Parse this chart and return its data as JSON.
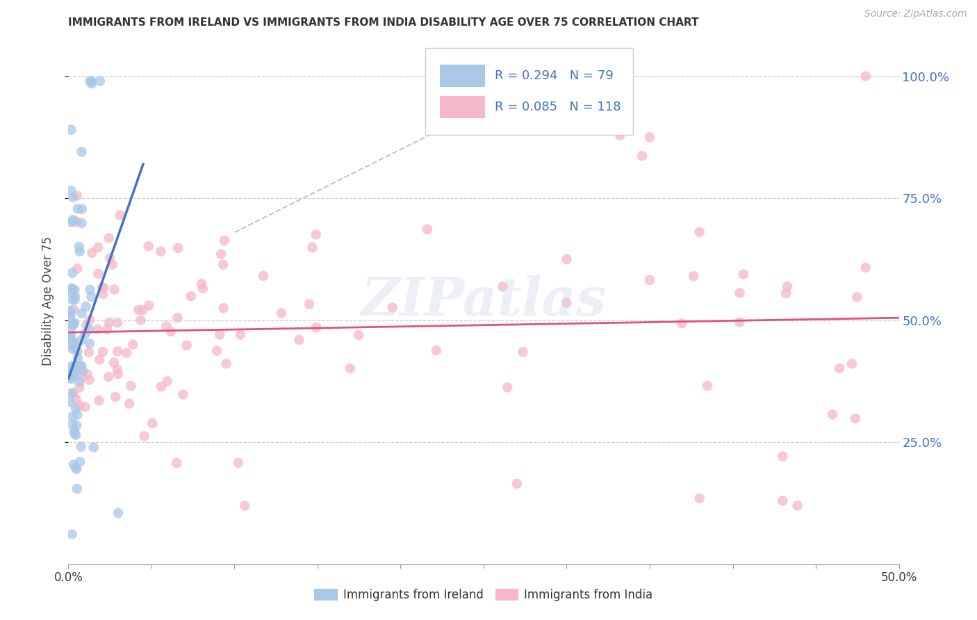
{
  "title": "IMMIGRANTS FROM IRELAND VS IMMIGRANTS FROM INDIA DISABILITY AGE OVER 75 CORRELATION CHART",
  "source": "Source: ZipAtlas.com",
  "ylabel": "Disability Age Over 75",
  "xlabel_ireland": "Immigrants from Ireland",
  "xlabel_india": "Immigrants from India",
  "r_ireland": 0.294,
  "n_ireland": 79,
  "r_india": 0.085,
  "n_india": 118,
  "xlim": [
    0.0,
    0.5
  ],
  "ylim": [
    0.0,
    1.08
  ],
  "yticks": [
    0.25,
    0.5,
    0.75,
    1.0
  ],
  "ytick_labels": [
    "25.0%",
    "50.0%",
    "75.0%",
    "100.0%"
  ],
  "xtick_positions": [
    0.0,
    0.05,
    0.1,
    0.15,
    0.2,
    0.25,
    0.3,
    0.35,
    0.4,
    0.45,
    0.5
  ],
  "xtick_labels": [
    "0.0%",
    "",
    "",
    "",
    "",
    "",
    "",
    "",
    "",
    "",
    "50.0%"
  ],
  "color_ireland": "#a8c8e8",
  "color_ireland_line": "#4472c4",
  "color_india": "#f4b8c8",
  "color_india_line": "#e05080",
  "background_color": "#ffffff",
  "watermark": "ZIPatlas",
  "grid_color": "#cccccc",
  "tick_color": "#4472c4",
  "title_color": "#333333",
  "source_color": "#aaaaaa"
}
